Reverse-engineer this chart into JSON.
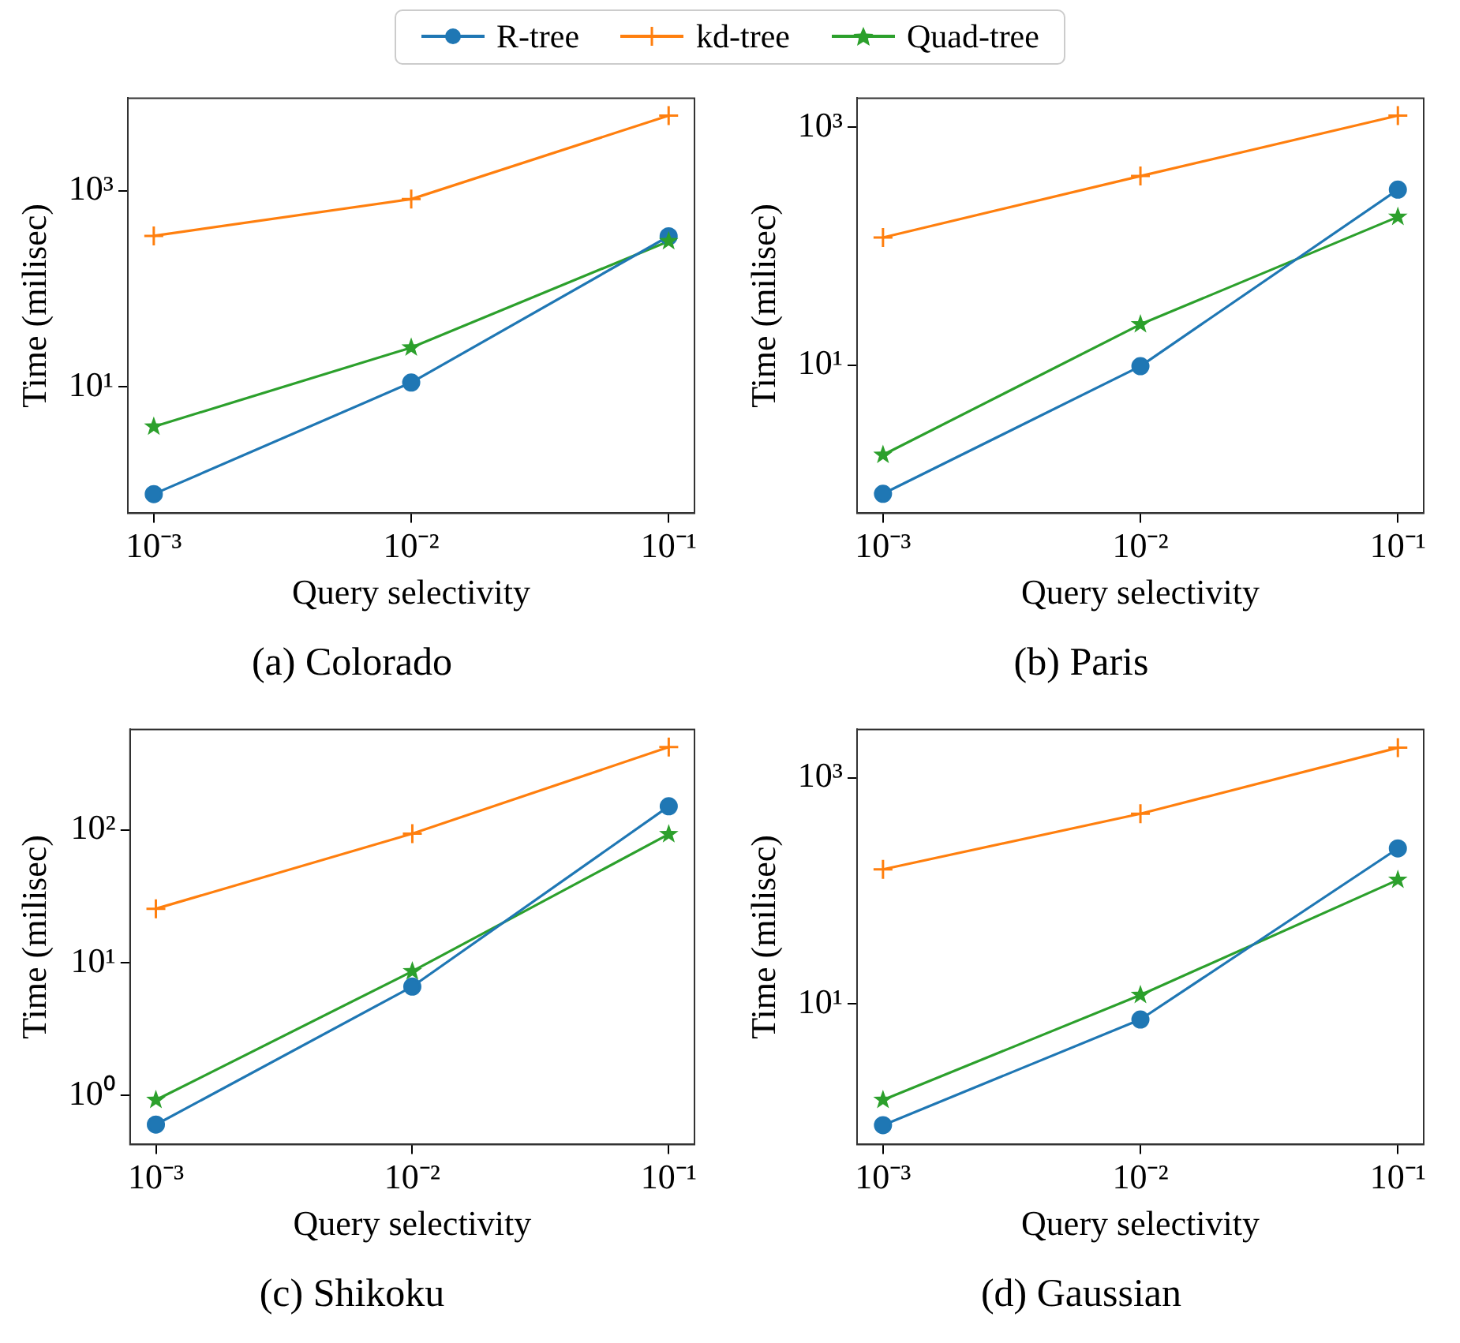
{
  "chart_data": [
    {
      "type": "line",
      "title": "(a) Colorado",
      "xlabel": "Query selectivity",
      "ylabel": "Time (milisec)",
      "log": "xy",
      "legend": "top",
      "grid": false,
      "x": [
        0.001,
        0.01,
        0.1
      ],
      "xlim": [
        0.000793,
        0.126
      ],
      "xticks": [
        {
          "value": 0.001,
          "label": "10⁻³"
        },
        {
          "value": 0.01,
          "label": "10⁻²"
        },
        {
          "value": 0.1,
          "label": "10⁻¹"
        }
      ],
      "ylim": [
        0.51,
        8800
      ],
      "yticks": [
        {
          "value": 10,
          "label": "10¹"
        },
        {
          "value": 1000,
          "label": "10³"
        }
      ],
      "series": [
        {
          "name": "R-tree",
          "color": "#1f77b4",
          "marker": "circle",
          "values": [
            0.8,
            11,
            342
          ]
        },
        {
          "name": "kd-tree",
          "color": "#ff7f0e",
          "marker": "cross",
          "values": [
            346,
            820,
            5850
          ]
        },
        {
          "name": "Quad-tree",
          "color": "#2ca02c",
          "marker": "star",
          "values": [
            3.9,
            25,
            305
          ]
        }
      ]
    },
    {
      "type": "line",
      "title": "(b) Paris",
      "xlabel": "Query selectivity",
      "ylabel": "Time (milisec)",
      "log": "xy",
      "grid": false,
      "x": [
        0.001,
        0.01,
        0.1
      ],
      "xlim": [
        0.000793,
        0.126
      ],
      "xticks": [
        {
          "value": 0.001,
          "label": "10⁻³"
        },
        {
          "value": 0.01,
          "label": "10⁻²"
        },
        {
          "value": 0.1,
          "label": "10⁻¹"
        }
      ],
      "ylim": [
        0.57,
        1750
      ],
      "yticks": [
        {
          "value": 10,
          "label": "10¹"
        },
        {
          "value": 1000,
          "label": "10³"
        }
      ],
      "series": [
        {
          "color": "#1f77b4",
          "marker": "circle",
          "values": [
            0.83,
            9.8,
            298
          ]
        },
        {
          "color": "#ff7f0e",
          "marker": "cross",
          "values": [
            118,
            388,
            1250
          ]
        },
        {
          "color": "#2ca02c",
          "marker": "star",
          "values": [
            1.76,
            22,
            176
          ]
        }
      ]
    },
    {
      "type": "line",
      "title": "(c) Shikoku",
      "xlabel": "Query selectivity",
      "ylabel": "Time (milisec)",
      "log": "xy",
      "grid": false,
      "x": [
        0.001,
        0.01,
        0.1
      ],
      "xlim": [
        0.000793,
        0.126
      ],
      "xticks": [
        {
          "value": 0.001,
          "label": "10⁻³"
        },
        {
          "value": 0.01,
          "label": "10⁻²"
        },
        {
          "value": 0.1,
          "label": "10⁻¹"
        }
      ],
      "ylim": [
        0.425,
        574
      ],
      "yticks": [
        {
          "value": 1,
          "label": "10⁰"
        },
        {
          "value": 10,
          "label": "10¹"
        },
        {
          "value": 100,
          "label": "10²"
        }
      ],
      "series": [
        {
          "color": "#1f77b4",
          "marker": "circle",
          "values": [
            0.6,
            6.6,
            151
          ]
        },
        {
          "color": "#ff7f0e",
          "marker": "cross",
          "values": [
            25.5,
            94,
            422
          ]
        },
        {
          "color": "#2ca02c",
          "marker": "star",
          "values": [
            0.92,
            8.6,
            93
          ]
        }
      ]
    },
    {
      "type": "line",
      "title": "(d) Gaussian",
      "xlabel": "Query selectivity",
      "ylabel": "Time (milisec)",
      "log": "xy",
      "grid": false,
      "x": [
        0.001,
        0.01,
        0.1
      ],
      "xlim": [
        0.000793,
        0.126
      ],
      "xticks": [
        {
          "value": 0.001,
          "label": "10⁻³"
        },
        {
          "value": 0.01,
          "label": "10⁻²"
        },
        {
          "value": 0.1,
          "label": "10⁻¹"
        }
      ],
      "ylim": [
        0.574,
        2670
      ],
      "yticks": [
        {
          "value": 10,
          "label": "10¹"
        },
        {
          "value": 1000,
          "label": "10³"
        }
      ],
      "series": [
        {
          "color": "#1f77b4",
          "marker": "circle",
          "values": [
            0.85,
            7.3,
            237
          ]
        },
        {
          "color": "#ff7f0e",
          "marker": "cross",
          "values": [
            155,
            480,
            1840
          ]
        },
        {
          "color": "#2ca02c",
          "marker": "star",
          "values": [
            1.42,
            12,
            125
          ]
        }
      ]
    }
  ]
}
